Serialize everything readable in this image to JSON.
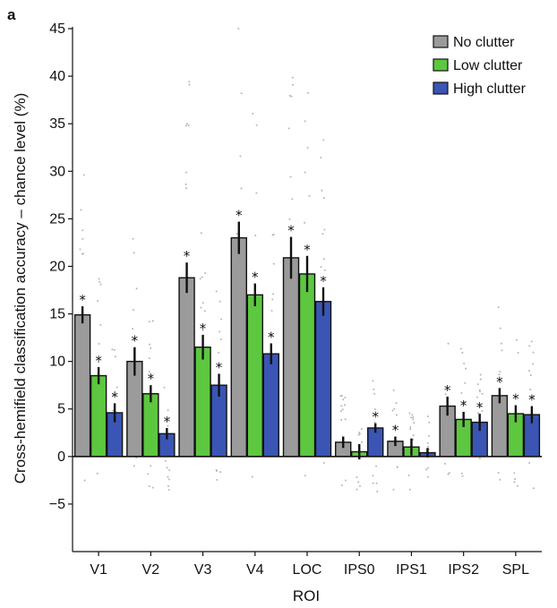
{
  "panel_label": "a",
  "chart_data": {
    "type": "bar",
    "title": "",
    "xlabel": "ROI",
    "ylabel": "Cross-hemifield classification accuracy – chance level (%)",
    "ylim": [
      -10,
      45
    ],
    "yticks": [
      -5,
      0,
      5,
      10,
      15,
      20,
      25,
      30,
      35,
      40,
      45
    ],
    "ytick_labels": [
      "−5",
      "0",
      "5",
      "10",
      "15",
      "20",
      "25",
      "30",
      "35",
      "40",
      "45"
    ],
    "grid": false,
    "legend_position": "top-right",
    "categories": [
      "V1",
      "V2",
      "V3",
      "V4",
      "LOC",
      "IPS0",
      "IPS1",
      "IPS2",
      "SPL"
    ],
    "series": [
      {
        "name": "No clutter",
        "color": "#9b9b9b",
        "values": [
          14.9,
          10.0,
          18.8,
          23.0,
          20.9,
          1.5,
          1.6,
          5.3,
          6.4
        ],
        "errors": [
          0.9,
          1.5,
          1.6,
          1.7,
          2.2,
          0.6,
          0.5,
          1.0,
          0.8
        ],
        "significant": [
          true,
          true,
          true,
          true,
          true,
          false,
          true,
          true,
          true
        ]
      },
      {
        "name": "Low clutter",
        "color": "#5dc740",
        "values": [
          8.5,
          6.6,
          11.5,
          17.0,
          19.2,
          0.5,
          1.0,
          3.9,
          4.5
        ],
        "errors": [
          0.9,
          0.9,
          1.3,
          1.2,
          1.9,
          0.8,
          0.9,
          0.8,
          0.9
        ],
        "significant": [
          true,
          true,
          true,
          true,
          true,
          false,
          false,
          true,
          true
        ]
      },
      {
        "name": "High clutter",
        "color": "#3a55b4",
        "values": [
          4.6,
          2.4,
          7.5,
          10.8,
          16.3,
          3.0,
          0.4,
          3.6,
          4.4
        ],
        "errors": [
          1.0,
          0.6,
          1.2,
          1.1,
          1.5,
          0.5,
          0.5,
          0.9,
          0.9
        ],
        "significant": [
          true,
          true,
          true,
          true,
          true,
          true,
          false,
          true,
          true
        ]
      }
    ],
    "significance_marker": "*"
  }
}
